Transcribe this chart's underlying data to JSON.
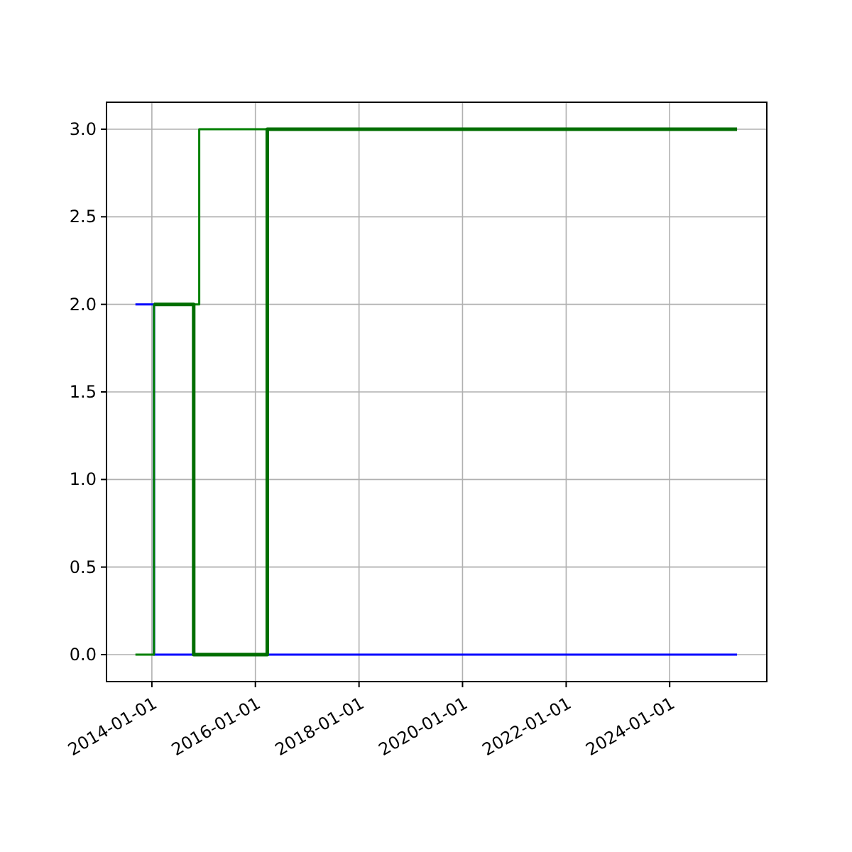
{
  "chart_data": {
    "type": "step",
    "grid": true,
    "xlim": [
      "2013-02-15",
      "2025-11-16"
    ],
    "ylim": [
      -0.154,
      3.154
    ],
    "xticks": [
      {
        "value": "2014-01-01",
        "label": "2014-01-01"
      },
      {
        "value": "2016-01-01",
        "label": "2016-01-01"
      },
      {
        "value": "2018-01-01",
        "label": "2018-01-01"
      },
      {
        "value": "2020-01-01",
        "label": "2020-01-01"
      },
      {
        "value": "2022-01-01",
        "label": "2022-01-01"
      },
      {
        "value": "2024-01-01",
        "label": "2024-01-01"
      }
    ],
    "yticks": [
      {
        "value": 0,
        "label": "0.0"
      },
      {
        "value": 0.5,
        "label": "0.5"
      },
      {
        "value": 1,
        "label": "1.0"
      },
      {
        "value": 1.5,
        "label": "1.5"
      },
      {
        "value": 2,
        "label": "2.0"
      },
      {
        "value": 2.5,
        "label": "2.5"
      },
      {
        "value": 3,
        "label": "3.0"
      }
    ],
    "series": [
      {
        "color": "#0000ff",
        "x": [
          "2013-09-07",
          "2014-01-16",
          "2025-04-20"
        ],
        "values": [
          2,
          0,
          0
        ]
      },
      {
        "color": "#008000",
        "x": [
          "2013-09-07",
          "2014-01-16",
          "2014-12-01",
          "2025-04-20"
        ],
        "values": [
          0,
          2,
          3,
          3
        ]
      },
      {
        "color": "#006e00",
        "x": [
          "2014-01-16",
          "2014-10-23",
          "2016-03-25",
          "2025-04-20"
        ],
        "values": [
          2,
          0,
          3,
          3
        ]
      }
    ]
  }
}
